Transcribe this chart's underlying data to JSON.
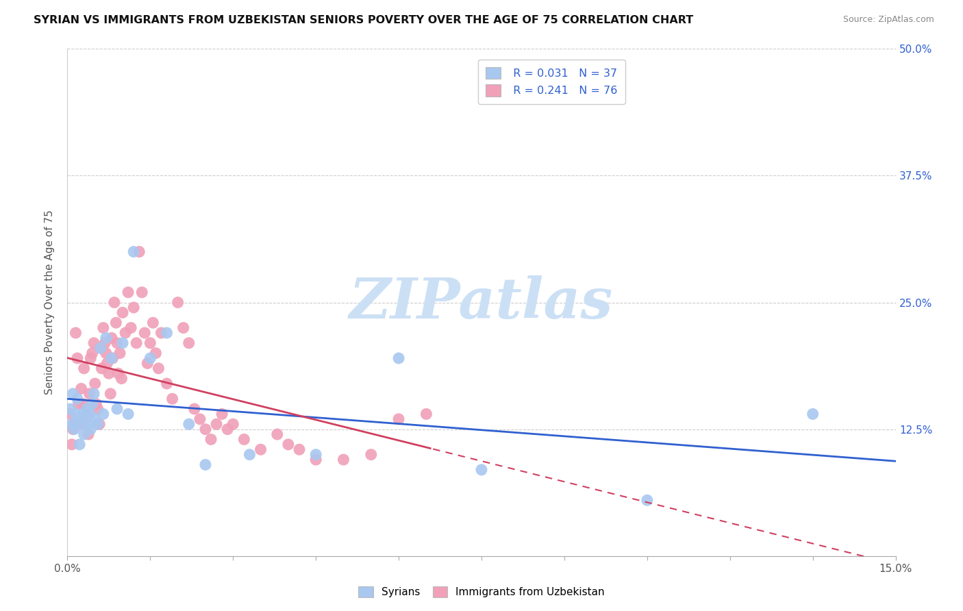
{
  "title": "SYRIAN VS IMMIGRANTS FROM UZBEKISTAN SENIORS POVERTY OVER THE AGE OF 75 CORRELATION CHART",
  "source": "Source: ZipAtlas.com",
  "ylabel": "Seniors Poverty Over the Age of 75",
  "xlim": [
    0.0,
    15.0
  ],
  "ylim": [
    0.0,
    50.0
  ],
  "blue_color": "#a8c8f0",
  "pink_color": "#f0a0b8",
  "blue_line_color": "#3060d0",
  "pink_line_color": "#d04060",
  "watermark_text": "ZIPatlas",
  "watermark_color": "#cce0f5",
  "legend_blue_r": "R = 0.031",
  "legend_blue_n": "N = 37",
  "legend_pink_r": "R = 0.241",
  "legend_pink_n": "N = 76",
  "legend_text_color": "#3060d0",
  "right_axis_color": "#3060d0",
  "syrians_x": [
    0.05,
    0.08,
    0.1,
    0.12,
    0.15,
    0.18,
    0.2,
    0.22,
    0.25,
    0.28,
    0.3,
    0.35,
    0.38,
    0.4,
    0.42,
    0.45,
    0.48,
    0.5,
    0.55,
    0.6,
    0.65,
    0.7,
    0.8,
    0.9,
    1.0,
    1.1,
    1.2,
    1.5,
    1.8,
    2.2,
    2.5,
    3.3,
    4.5,
    6.0,
    7.5,
    10.5,
    13.5
  ],
  "syrians_y": [
    14.5,
    13.0,
    16.0,
    12.5,
    14.0,
    15.5,
    13.5,
    11.0,
    13.0,
    14.0,
    12.0,
    14.5,
    13.0,
    14.0,
    12.5,
    15.0,
    16.0,
    13.5,
    13.0,
    20.5,
    14.0,
    21.5,
    19.5,
    14.5,
    21.0,
    14.0,
    30.0,
    19.5,
    22.0,
    13.0,
    9.0,
    10.0,
    10.0,
    19.5,
    8.5,
    5.5,
    14.0
  ],
  "uzbek_x": [
    0.05,
    0.08,
    0.1,
    0.12,
    0.15,
    0.18,
    0.2,
    0.22,
    0.25,
    0.28,
    0.3,
    0.32,
    0.35,
    0.38,
    0.4,
    0.42,
    0.45,
    0.48,
    0.5,
    0.52,
    0.55,
    0.58,
    0.6,
    0.62,
    0.65,
    0.68,
    0.7,
    0.72,
    0.75,
    0.78,
    0.8,
    0.82,
    0.85,
    0.88,
    0.9,
    0.92,
    0.95,
    0.98,
    1.0,
    1.05,
    1.1,
    1.15,
    1.2,
    1.25,
    1.3,
    1.35,
    1.4,
    1.45,
    1.5,
    1.55,
    1.6,
    1.65,
    1.7,
    1.8,
    1.9,
    2.0,
    2.1,
    2.2,
    2.3,
    2.4,
    2.5,
    2.6,
    2.7,
    2.8,
    2.9,
    3.0,
    3.2,
    3.5,
    3.8,
    4.0,
    4.2,
    4.5,
    5.0,
    5.5,
    6.0,
    6.5
  ],
  "uzbek_y": [
    14.0,
    11.0,
    12.5,
    13.0,
    22.0,
    19.5,
    15.0,
    13.0,
    16.5,
    15.0,
    18.5,
    13.5,
    14.0,
    12.0,
    16.0,
    19.5,
    20.0,
    21.0,
    17.0,
    15.0,
    14.5,
    13.0,
    20.5,
    18.5,
    22.5,
    21.0,
    20.0,
    19.0,
    18.0,
    16.0,
    21.5,
    19.5,
    25.0,
    23.0,
    21.0,
    18.0,
    20.0,
    17.5,
    24.0,
    22.0,
    26.0,
    22.5,
    24.5,
    21.0,
    30.0,
    26.0,
    22.0,
    19.0,
    21.0,
    23.0,
    20.0,
    18.5,
    22.0,
    17.0,
    15.5,
    25.0,
    22.5,
    21.0,
    14.5,
    13.5,
    12.5,
    11.5,
    13.0,
    14.0,
    12.5,
    13.0,
    11.5,
    10.5,
    12.0,
    11.0,
    10.5,
    9.5,
    9.5,
    10.0,
    13.5,
    14.0
  ]
}
